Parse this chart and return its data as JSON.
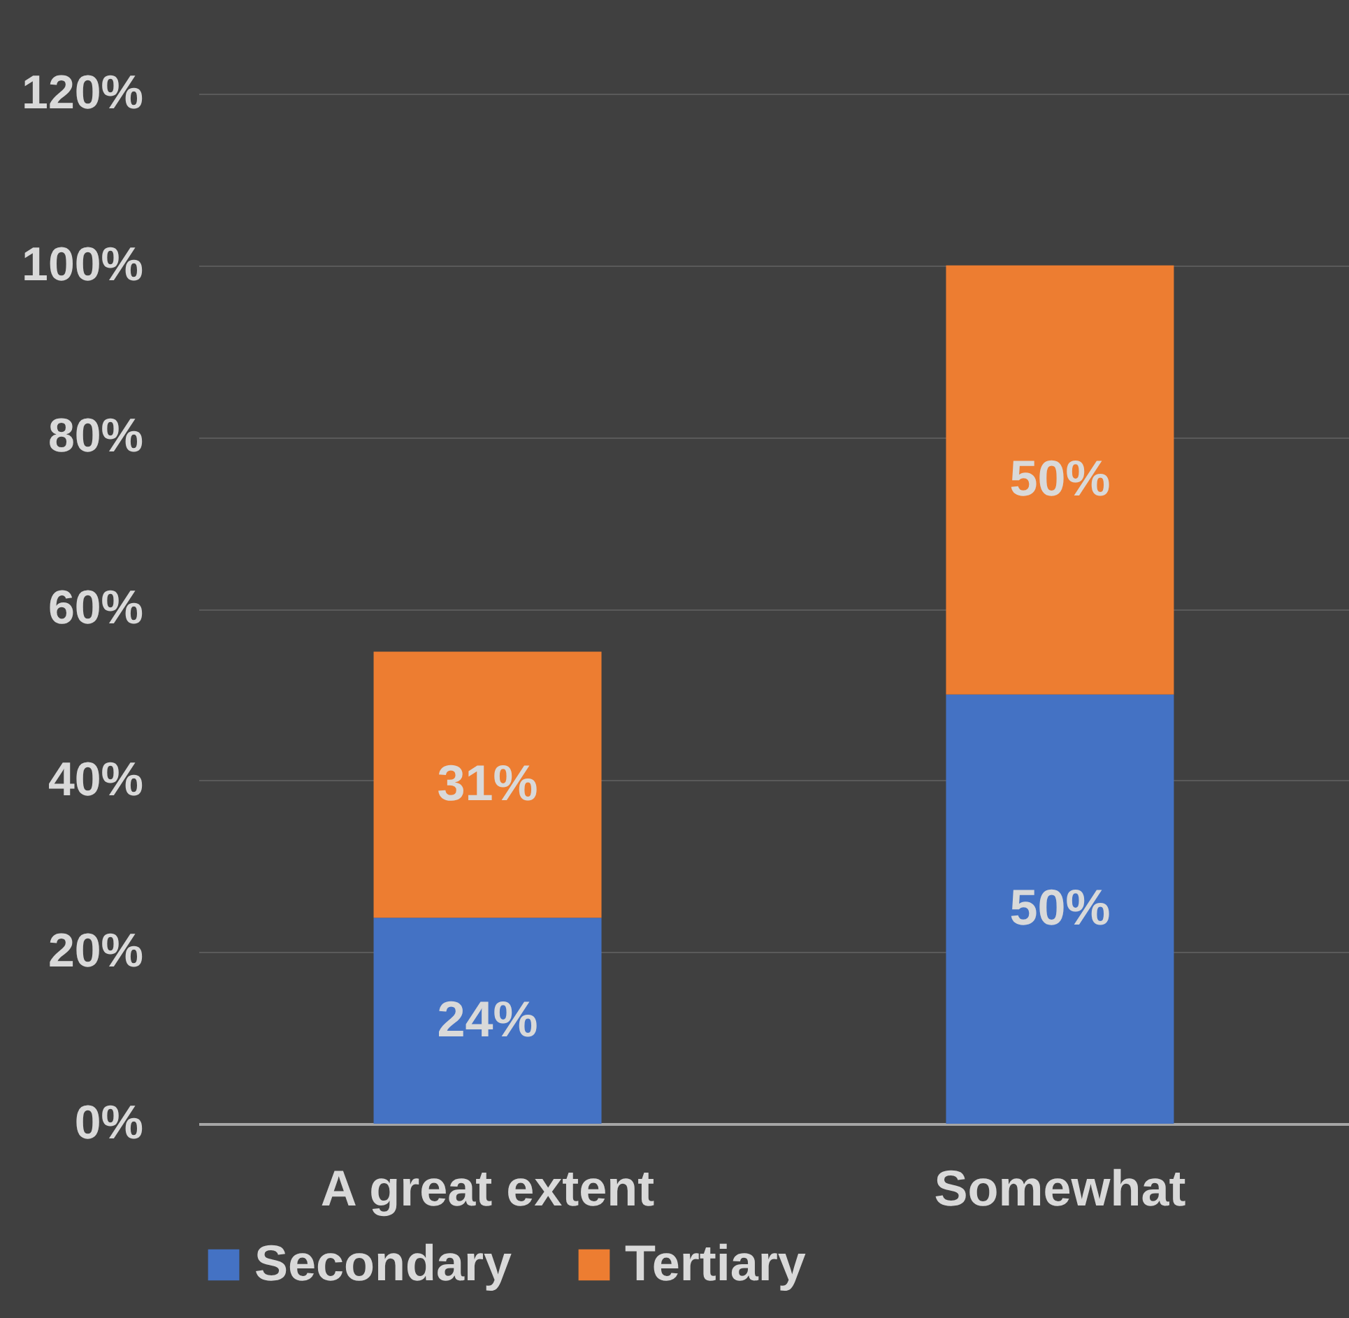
{
  "chart_data": {
    "type": "bar",
    "stacked": true,
    "categories": [
      "A great extent",
      "Somewhat"
    ],
    "series": [
      {
        "name": "Secondary",
        "color": "#4472c4",
        "values": [
          24,
          50
        ],
        "value_labels": [
          "24%",
          "50%"
        ]
      },
      {
        "name": "Tertiary",
        "color": "#ed7d31",
        "values": [
          31,
          50
        ],
        "value_labels": [
          "31%",
          "50%"
        ]
      }
    ],
    "ylim": [
      0,
      120
    ],
    "yticks": [
      {
        "value": 0,
        "label": "0%"
      },
      {
        "value": 20,
        "label": "20%"
      },
      {
        "value": 40,
        "label": "40%"
      },
      {
        "value": 60,
        "label": "60%"
      },
      {
        "value": 80,
        "label": "80%"
      },
      {
        "value": 100,
        "label": "100%"
      },
      {
        "value": 120,
        "label": "120%"
      }
    ],
    "grid": "y",
    "legend": "bottom"
  }
}
